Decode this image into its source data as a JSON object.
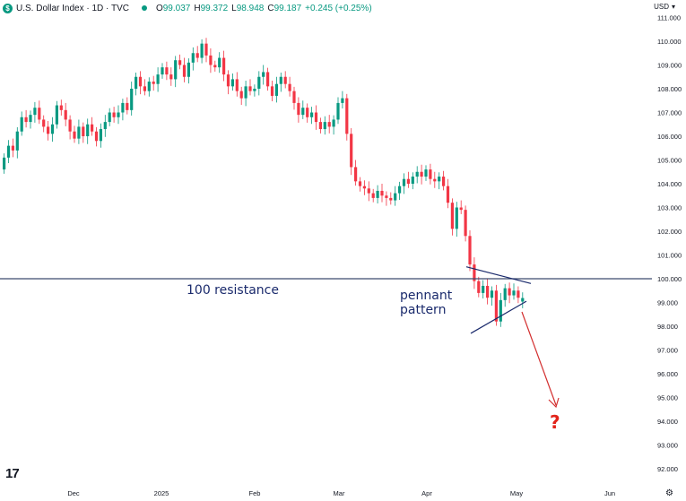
{
  "header": {
    "symbol_badge": "$",
    "title": "U.S. Dollar Index · 1D · TVC",
    "ohlc": [
      {
        "key": "O",
        "value": "99.037"
      },
      {
        "key": "H",
        "value": "99.372"
      },
      {
        "key": "L",
        "value": "98.948"
      },
      {
        "key": "C",
        "value": "99.187"
      },
      {
        "key": "",
        "value": "+0.245 (+0.25%)"
      }
    ],
    "currency": "USD",
    "currency_caret": "▾"
  },
  "footer": {
    "logo": "17",
    "settings_icon": "⚙"
  },
  "colors": {
    "up": "#089981",
    "down": "#f23645",
    "resistance": "#3c4a6e",
    "arrow": "#d32f2f",
    "annotation": "#1a2a6c"
  },
  "chart_data": {
    "type": "candlestick",
    "title": "U.S. Dollar Index · 1D · TVC",
    "ylim": [
      91.8,
      111.3
    ],
    "yticks": [
      "111.000",
      "110.000",
      "109.000",
      "108.000",
      "107.000",
      "106.000",
      "105.000",
      "104.000",
      "103.000",
      "102.000",
      "101.000",
      "100.000",
      "99.000",
      "98.000",
      "97.000",
      "96.000",
      "95.000",
      "94.000",
      "93.000",
      "92.000"
    ],
    "xticks": [
      "Dec",
      "2025",
      "Feb",
      "Mar",
      "Apr",
      "May",
      "Jun"
    ],
    "candles": [
      {
        "o": 104.6,
        "c": 105.1
      },
      {
        "o": 105.1,
        "c": 105.6
      },
      {
        "o": 105.6,
        "c": 105.4
      },
      {
        "o": 105.4,
        "c": 106.2
      },
      {
        "o": 106.2,
        "c": 106.8
      },
      {
        "o": 106.8,
        "c": 106.6
      },
      {
        "o": 106.6,
        "c": 106.9
      },
      {
        "o": 106.9,
        "c": 107.2
      },
      {
        "o": 107.2,
        "c": 106.7
      },
      {
        "o": 106.7,
        "c": 106.4
      },
      {
        "o": 106.4,
        "c": 106.1
      },
      {
        "o": 106.1,
        "c": 106.5
      },
      {
        "o": 106.5,
        "c": 107.3
      },
      {
        "o": 107.3,
        "c": 107.1
      },
      {
        "o": 107.1,
        "c": 106.7
      },
      {
        "o": 106.7,
        "c": 106.2
      },
      {
        "o": 106.2,
        "c": 105.9
      },
      {
        "o": 105.9,
        "c": 106.4
      },
      {
        "o": 106.4,
        "c": 106.0
      },
      {
        "o": 106.0,
        "c": 106.5
      },
      {
        "o": 106.5,
        "c": 106.2
      },
      {
        "o": 106.2,
        "c": 105.8
      },
      {
        "o": 105.8,
        "c": 106.3
      },
      {
        "o": 106.3,
        "c": 106.6
      },
      {
        "o": 106.6,
        "c": 107.0
      },
      {
        "o": 107.0,
        "c": 106.8
      },
      {
        "o": 106.8,
        "c": 107.0
      },
      {
        "o": 107.0,
        "c": 107.4
      },
      {
        "o": 107.4,
        "c": 107.1
      },
      {
        "o": 107.1,
        "c": 108.0
      },
      {
        "o": 108.0,
        "c": 108.5
      },
      {
        "o": 108.5,
        "c": 108.1
      },
      {
        "o": 108.1,
        "c": 107.9
      },
      {
        "o": 107.9,
        "c": 108.3
      },
      {
        "o": 108.3,
        "c": 108.2
      },
      {
        "o": 108.2,
        "c": 108.6
      },
      {
        "o": 108.6,
        "c": 108.9
      },
      {
        "o": 108.9,
        "c": 108.6
      },
      {
        "o": 108.6,
        "c": 108.4
      },
      {
        "o": 108.4,
        "c": 109.2
      },
      {
        "o": 109.2,
        "c": 109.0
      },
      {
        "o": 109.0,
        "c": 108.5
      },
      {
        "o": 108.5,
        "c": 109.1
      },
      {
        "o": 109.1,
        "c": 109.5
      },
      {
        "o": 109.5,
        "c": 109.3
      },
      {
        "o": 109.3,
        "c": 109.9
      },
      {
        "o": 109.9,
        "c": 109.4
      },
      {
        "o": 109.4,
        "c": 109.0
      },
      {
        "o": 109.0,
        "c": 108.9
      },
      {
        "o": 108.9,
        "c": 109.3
      },
      {
        "o": 109.3,
        "c": 108.6
      },
      {
        "o": 108.6,
        "c": 108.1
      },
      {
        "o": 108.1,
        "c": 108.4
      },
      {
        "o": 108.4,
        "c": 107.9
      },
      {
        "o": 107.9,
        "c": 107.6
      },
      {
        "o": 107.6,
        "c": 108.1
      },
      {
        "o": 108.1,
        "c": 107.9
      },
      {
        "o": 107.9,
        "c": 108.0
      },
      {
        "o": 108.0,
        "c": 108.5
      },
      {
        "o": 108.5,
        "c": 108.7
      },
      {
        "o": 108.7,
        "c": 108.1
      },
      {
        "o": 108.1,
        "c": 107.7
      },
      {
        "o": 107.7,
        "c": 108.2
      },
      {
        "o": 108.2,
        "c": 108.5
      },
      {
        "o": 108.5,
        "c": 108.2
      },
      {
        "o": 108.2,
        "c": 107.9
      },
      {
        "o": 107.9,
        "c": 107.4
      },
      {
        "o": 107.4,
        "c": 106.9
      },
      {
        "o": 106.9,
        "c": 107.2
      },
      {
        "o": 107.2,
        "c": 106.8
      },
      {
        "o": 106.8,
        "c": 107.0
      },
      {
        "o": 107.0,
        "c": 106.6
      },
      {
        "o": 106.6,
        "c": 106.3
      },
      {
        "o": 106.3,
        "c": 106.6
      },
      {
        "o": 106.6,
        "c": 106.4
      },
      {
        "o": 106.4,
        "c": 106.7
      },
      {
        "o": 106.7,
        "c": 107.4
      },
      {
        "o": 107.4,
        "c": 107.6
      },
      {
        "o": 107.6,
        "c": 106.1
      },
      {
        "o": 106.1,
        "c": 104.7
      },
      {
        "o": 104.7,
        "c": 104.1
      },
      {
        "o": 104.1,
        "c": 103.9
      },
      {
        "o": 103.9,
        "c": 103.8
      },
      {
        "o": 103.8,
        "c": 103.6
      },
      {
        "o": 103.6,
        "c": 103.4
      },
      {
        "o": 103.4,
        "c": 103.7
      },
      {
        "o": 103.7,
        "c": 103.5
      },
      {
        "o": 103.5,
        "c": 103.4
      },
      {
        "o": 103.4,
        "c": 103.3
      },
      {
        "o": 103.3,
        "c": 103.6
      },
      {
        "o": 103.6,
        "c": 103.9
      },
      {
        "o": 103.9,
        "c": 104.2
      },
      {
        "o": 104.2,
        "c": 104.0
      },
      {
        "o": 104.0,
        "c": 104.3
      },
      {
        "o": 104.3,
        "c": 104.5
      },
      {
        "o": 104.5,
        "c": 104.3
      },
      {
        "o": 104.3,
        "c": 104.6
      },
      {
        "o": 104.6,
        "c": 104.2
      },
      {
        "o": 104.2,
        "c": 104.1
      },
      {
        "o": 104.1,
        "c": 104.3
      },
      {
        "o": 104.3,
        "c": 103.9
      },
      {
        "o": 103.9,
        "c": 103.2
      },
      {
        "o": 103.2,
        "c": 102.1
      },
      {
        "o": 102.1,
        "c": 103.0
      },
      {
        "o": 103.0,
        "c": 102.9
      },
      {
        "o": 102.9,
        "c": 101.8
      },
      {
        "o": 101.8,
        "c": 100.6
      },
      {
        "o": 100.6,
        "c": 99.9
      },
      {
        "o": 99.9,
        "c": 99.4
      },
      {
        "o": 99.4,
        "c": 99.7
      },
      {
        "o": 99.7,
        "c": 99.2
      },
      {
        "o": 99.2,
        "c": 99.5
      },
      {
        "o": 99.5,
        "c": 98.2
      },
      {
        "o": 98.2,
        "c": 99.1
      },
      {
        "o": 99.1,
        "c": 99.6
      },
      {
        "o": 99.6,
        "c": 99.3
      },
      {
        "o": 99.3,
        "c": 99.5
      },
      {
        "o": 99.5,
        "c": 99.2
      },
      {
        "o": 99.037,
        "c": 99.187
      }
    ],
    "resistance": {
      "value": 100.0,
      "label": "100 resistance"
    },
    "pattern_label": [
      "pennant",
      "pattern"
    ],
    "pennant": {
      "upper": [
        [
          0,
          100.2
        ],
        [
          1,
          99.8
        ]
      ],
      "lower": [
        [
          0,
          97.7
        ],
        [
          1,
          98.9
        ]
      ]
    },
    "projection_label": "?"
  }
}
